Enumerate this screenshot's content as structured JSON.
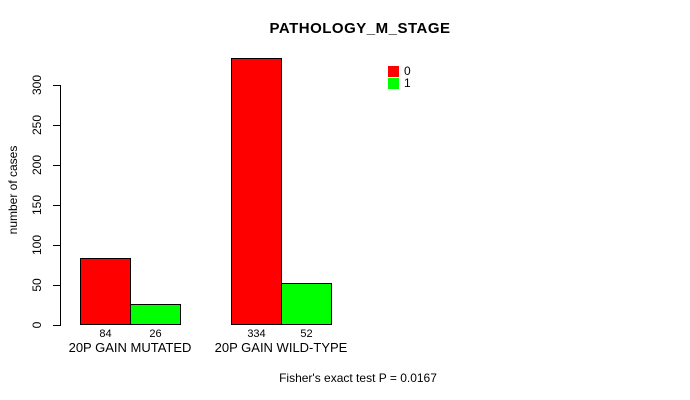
{
  "chart_data": {
    "type": "bar",
    "title": "PATHOLOGY_M_STAGE",
    "ylabel": "number of cases",
    "categories": [
      "20P GAIN MUTATED",
      "20P GAIN WILD-TYPE"
    ],
    "series": [
      {
        "name": "0",
        "color": "#ff0000",
        "values": [
          84,
          334
        ]
      },
      {
        "name": "1",
        "color": "#00ff00",
        "values": [
          26,
          52
        ]
      }
    ],
    "ylim": [
      0,
      300
    ],
    "yticks": [
      0,
      50,
      100,
      150,
      200,
      250,
      300
    ],
    "bar_value_labels": [
      [
        84,
        26
      ],
      [
        334,
        52
      ]
    ],
    "legend_position": "top-right",
    "grid": false,
    "axis_color": "#000000",
    "background_color": "#ffffff",
    "footnote": "Fisher's exact test P = 0.0167"
  }
}
